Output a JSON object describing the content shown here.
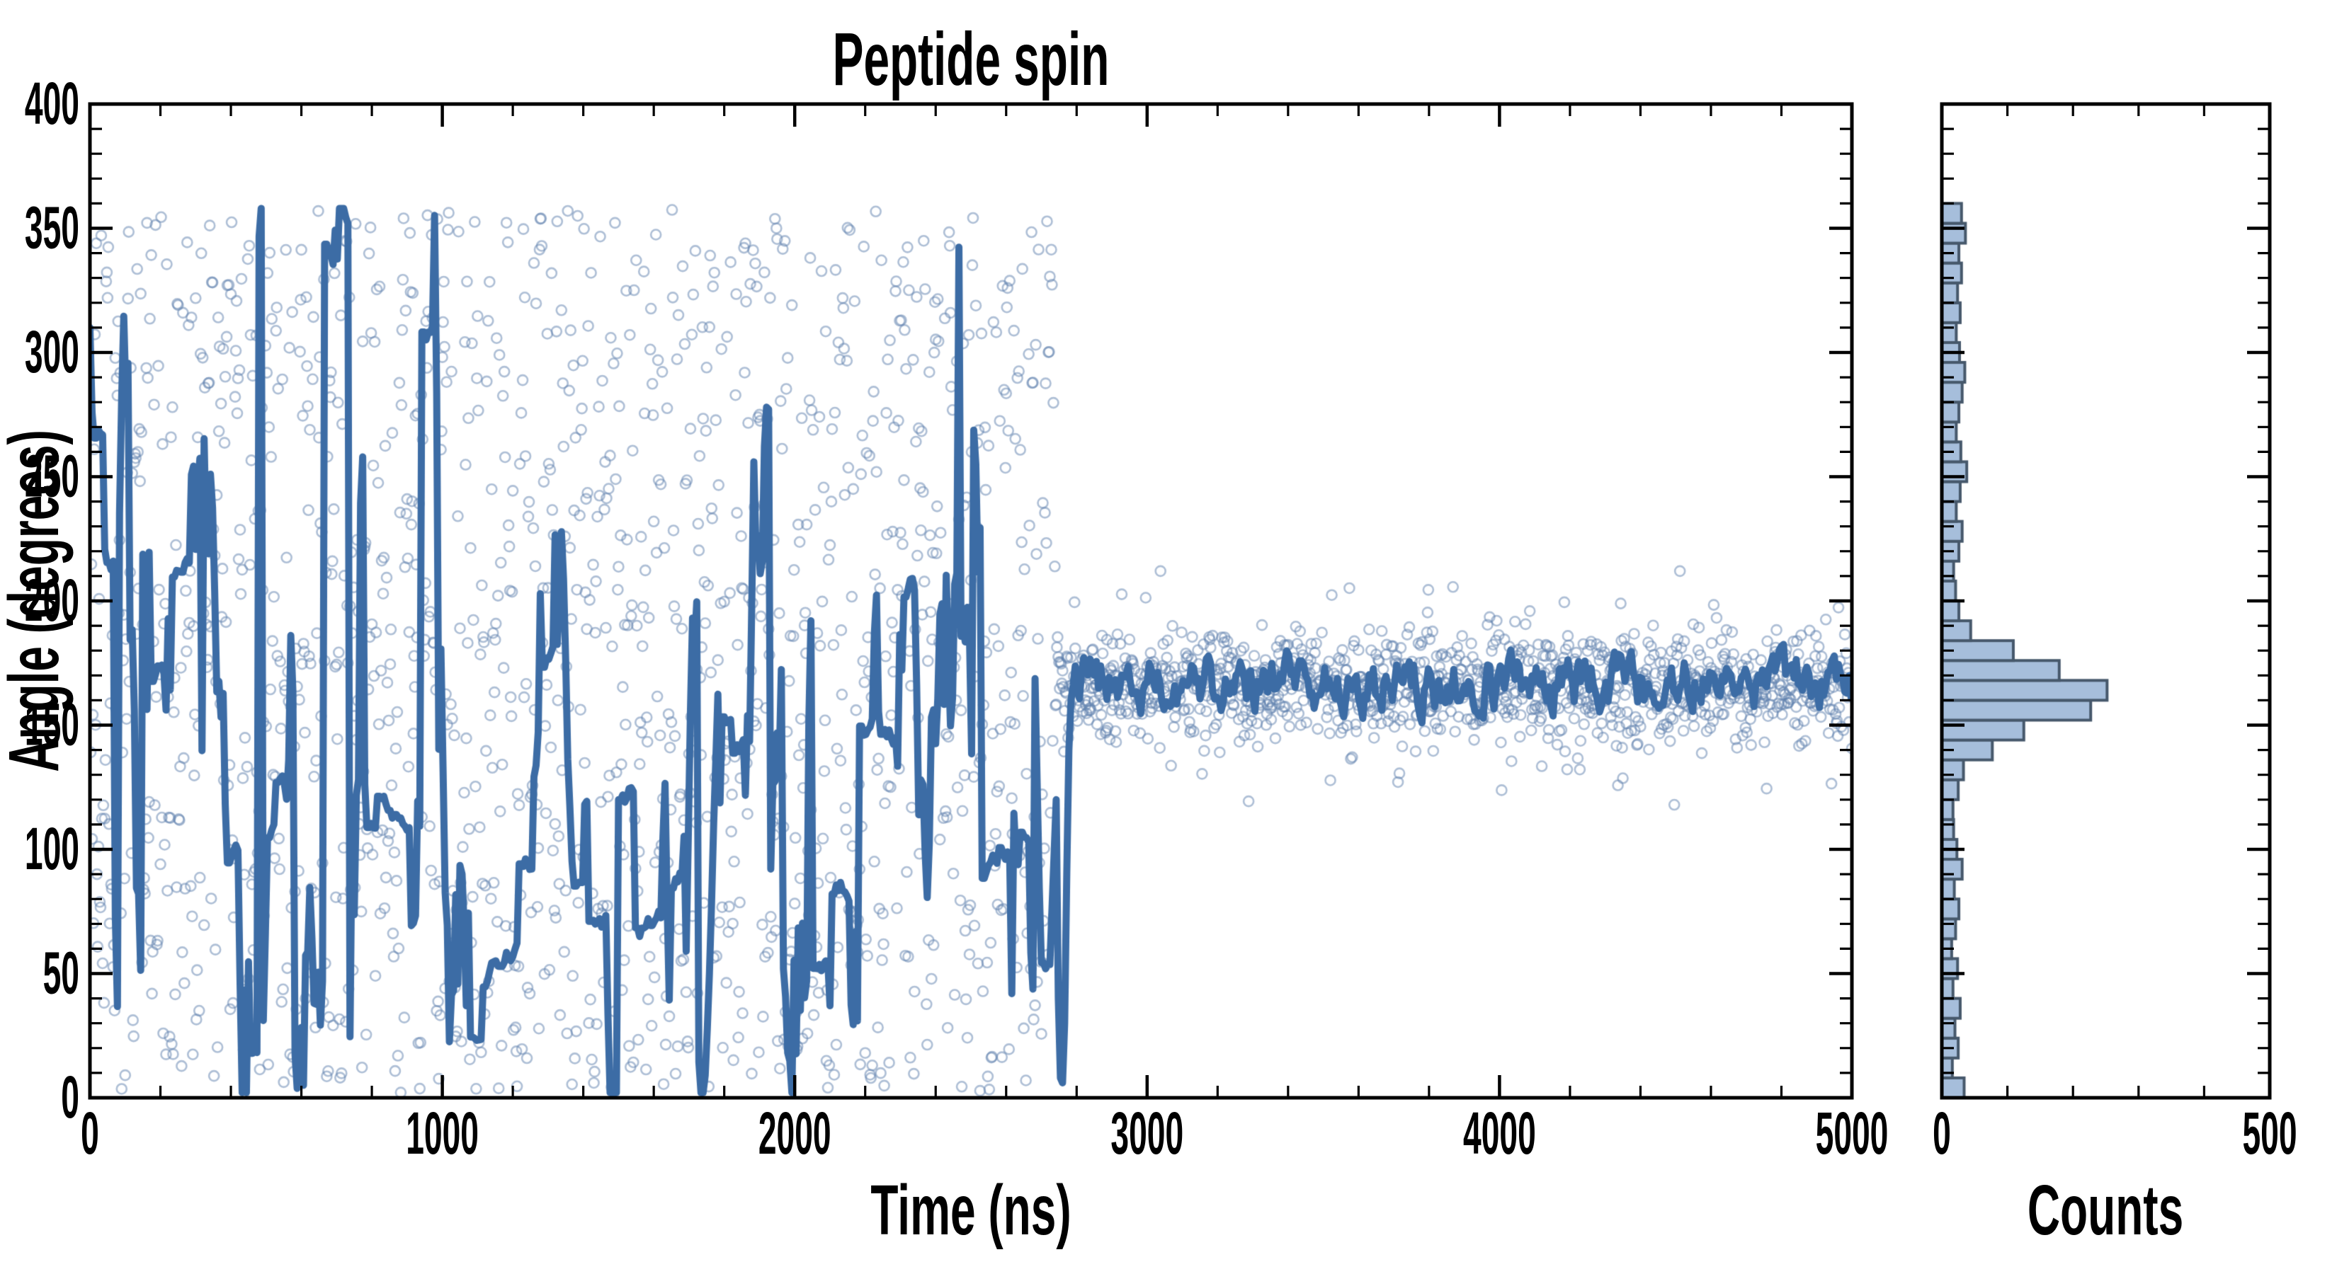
{
  "style": {
    "background": "#ffffff",
    "axis_color": "#000000",
    "scatter_stroke": "rgba(94,127,173,0.5)",
    "line_color": "#3c6ca5",
    "hist_fill": "#a6bedb",
    "hist_stroke": "#46586b"
  },
  "chart_data": [
    {
      "panel": "main",
      "type": "scatter",
      "title": "Peptide spin",
      "xlabel": "Time (ns)",
      "ylabel": "Angle (degrees)",
      "xlim": [
        0,
        5000
      ],
      "ylim": [
        0,
        400
      ],
      "xticks": [
        0,
        1000,
        2000,
        3000,
        4000,
        5000
      ],
      "yticks": [
        0,
        50,
        100,
        150,
        200,
        250,
        300,
        350,
        400
      ],
      "x_minor_step": 200,
      "y_minor_step": 10,
      "grid": false,
      "legend": "none",
      "series": [
        {
          "name": "angle-samples",
          "marker": "open-circle",
          "sample_interval_ns": 2,
          "regimes": [
            {
              "t_range": [
                0,
                2740
              ],
              "description": "chaotic spinning: angles spread roughly uniformly over 0-360 degrees"
            },
            {
              "t_range": [
                2740,
                5000
              ],
              "description": "locked state: angles ~166 deg, spread ~115-210 deg"
            }
          ]
        },
        {
          "name": "angle-trace",
          "marker": "line",
          "line_width": 10,
          "regimes": [
            {
              "t_range": [
                0,
                2740
              ],
              "description": "thick trace with rapid jumps spanning 0-360 degrees"
            },
            {
              "t_range": [
                2740,
                5000
              ],
              "description": "steady trace around 167 deg (+/-10), brief dip toward 0 near t=2755 before locking"
            }
          ]
        }
      ]
    },
    {
      "panel": "histogram",
      "type": "bar",
      "orientation": "horizontal",
      "xlabel": "Counts",
      "xlim": [
        0,
        500
      ],
      "xticks": [
        0,
        500
      ],
      "x_minor_step": 100,
      "ylim": [
        0,
        400
      ],
      "y_major_step": 50,
      "y_minor_step": 10,
      "bin_start_deg": 0,
      "bin_width_deg": 8,
      "counts": [
        34,
        16,
        25,
        20,
        28,
        17,
        24,
        15,
        21,
        26,
        19,
        31,
        23,
        18,
        17,
        25,
        33,
        77,
        125,
        227,
        252,
        179,
        109,
        44,
        26,
        21,
        18,
        26,
        31,
        22,
        28,
        38,
        29,
        22,
        26,
        31,
        35,
        27,
        22,
        28,
        24,
        30,
        26,
        36,
        30
      ]
    }
  ]
}
